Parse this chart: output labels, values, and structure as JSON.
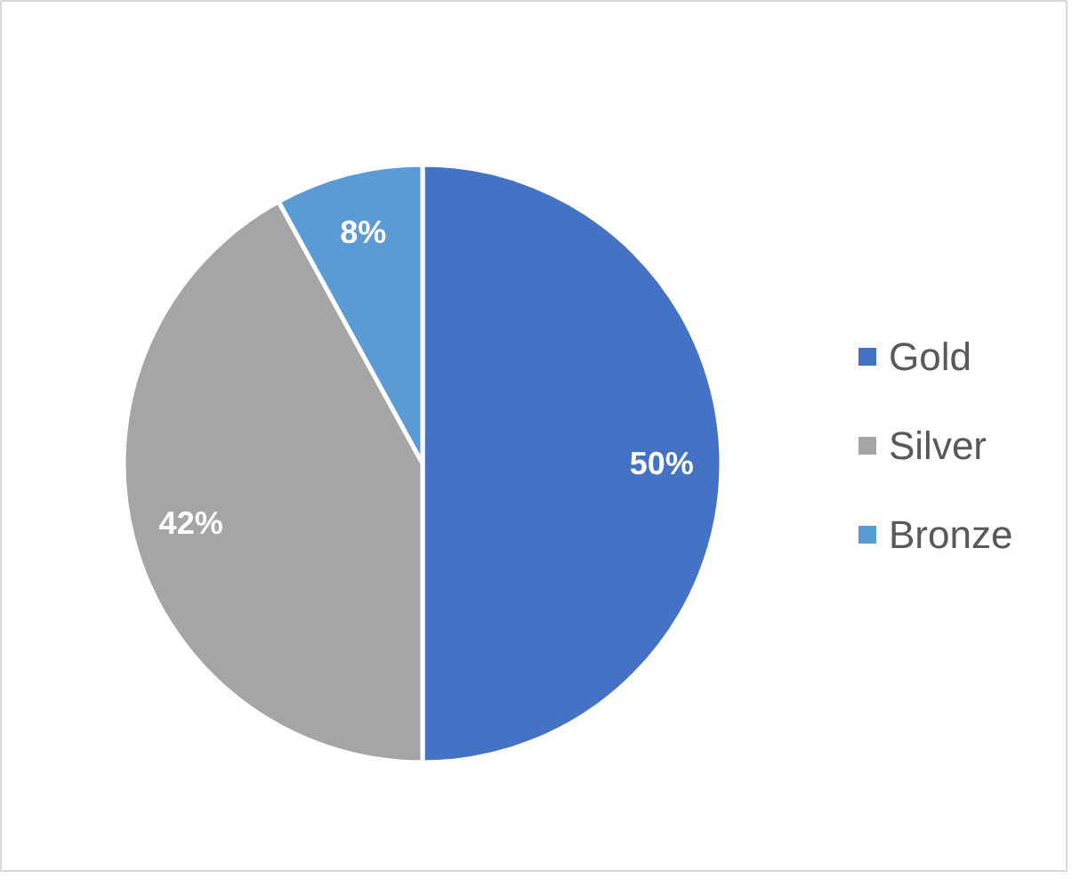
{
  "chart_data": {
    "type": "pie",
    "categories": [
      "Gold",
      "Silver",
      "Bronze"
    ],
    "values": [
      50,
      42,
      8
    ],
    "colors": [
      "#4472c4",
      "#a5a5a5",
      "#5b9bd5"
    ],
    "value_labels": [
      "50%",
      "42%",
      "8%"
    ],
    "legend": "right"
  }
}
